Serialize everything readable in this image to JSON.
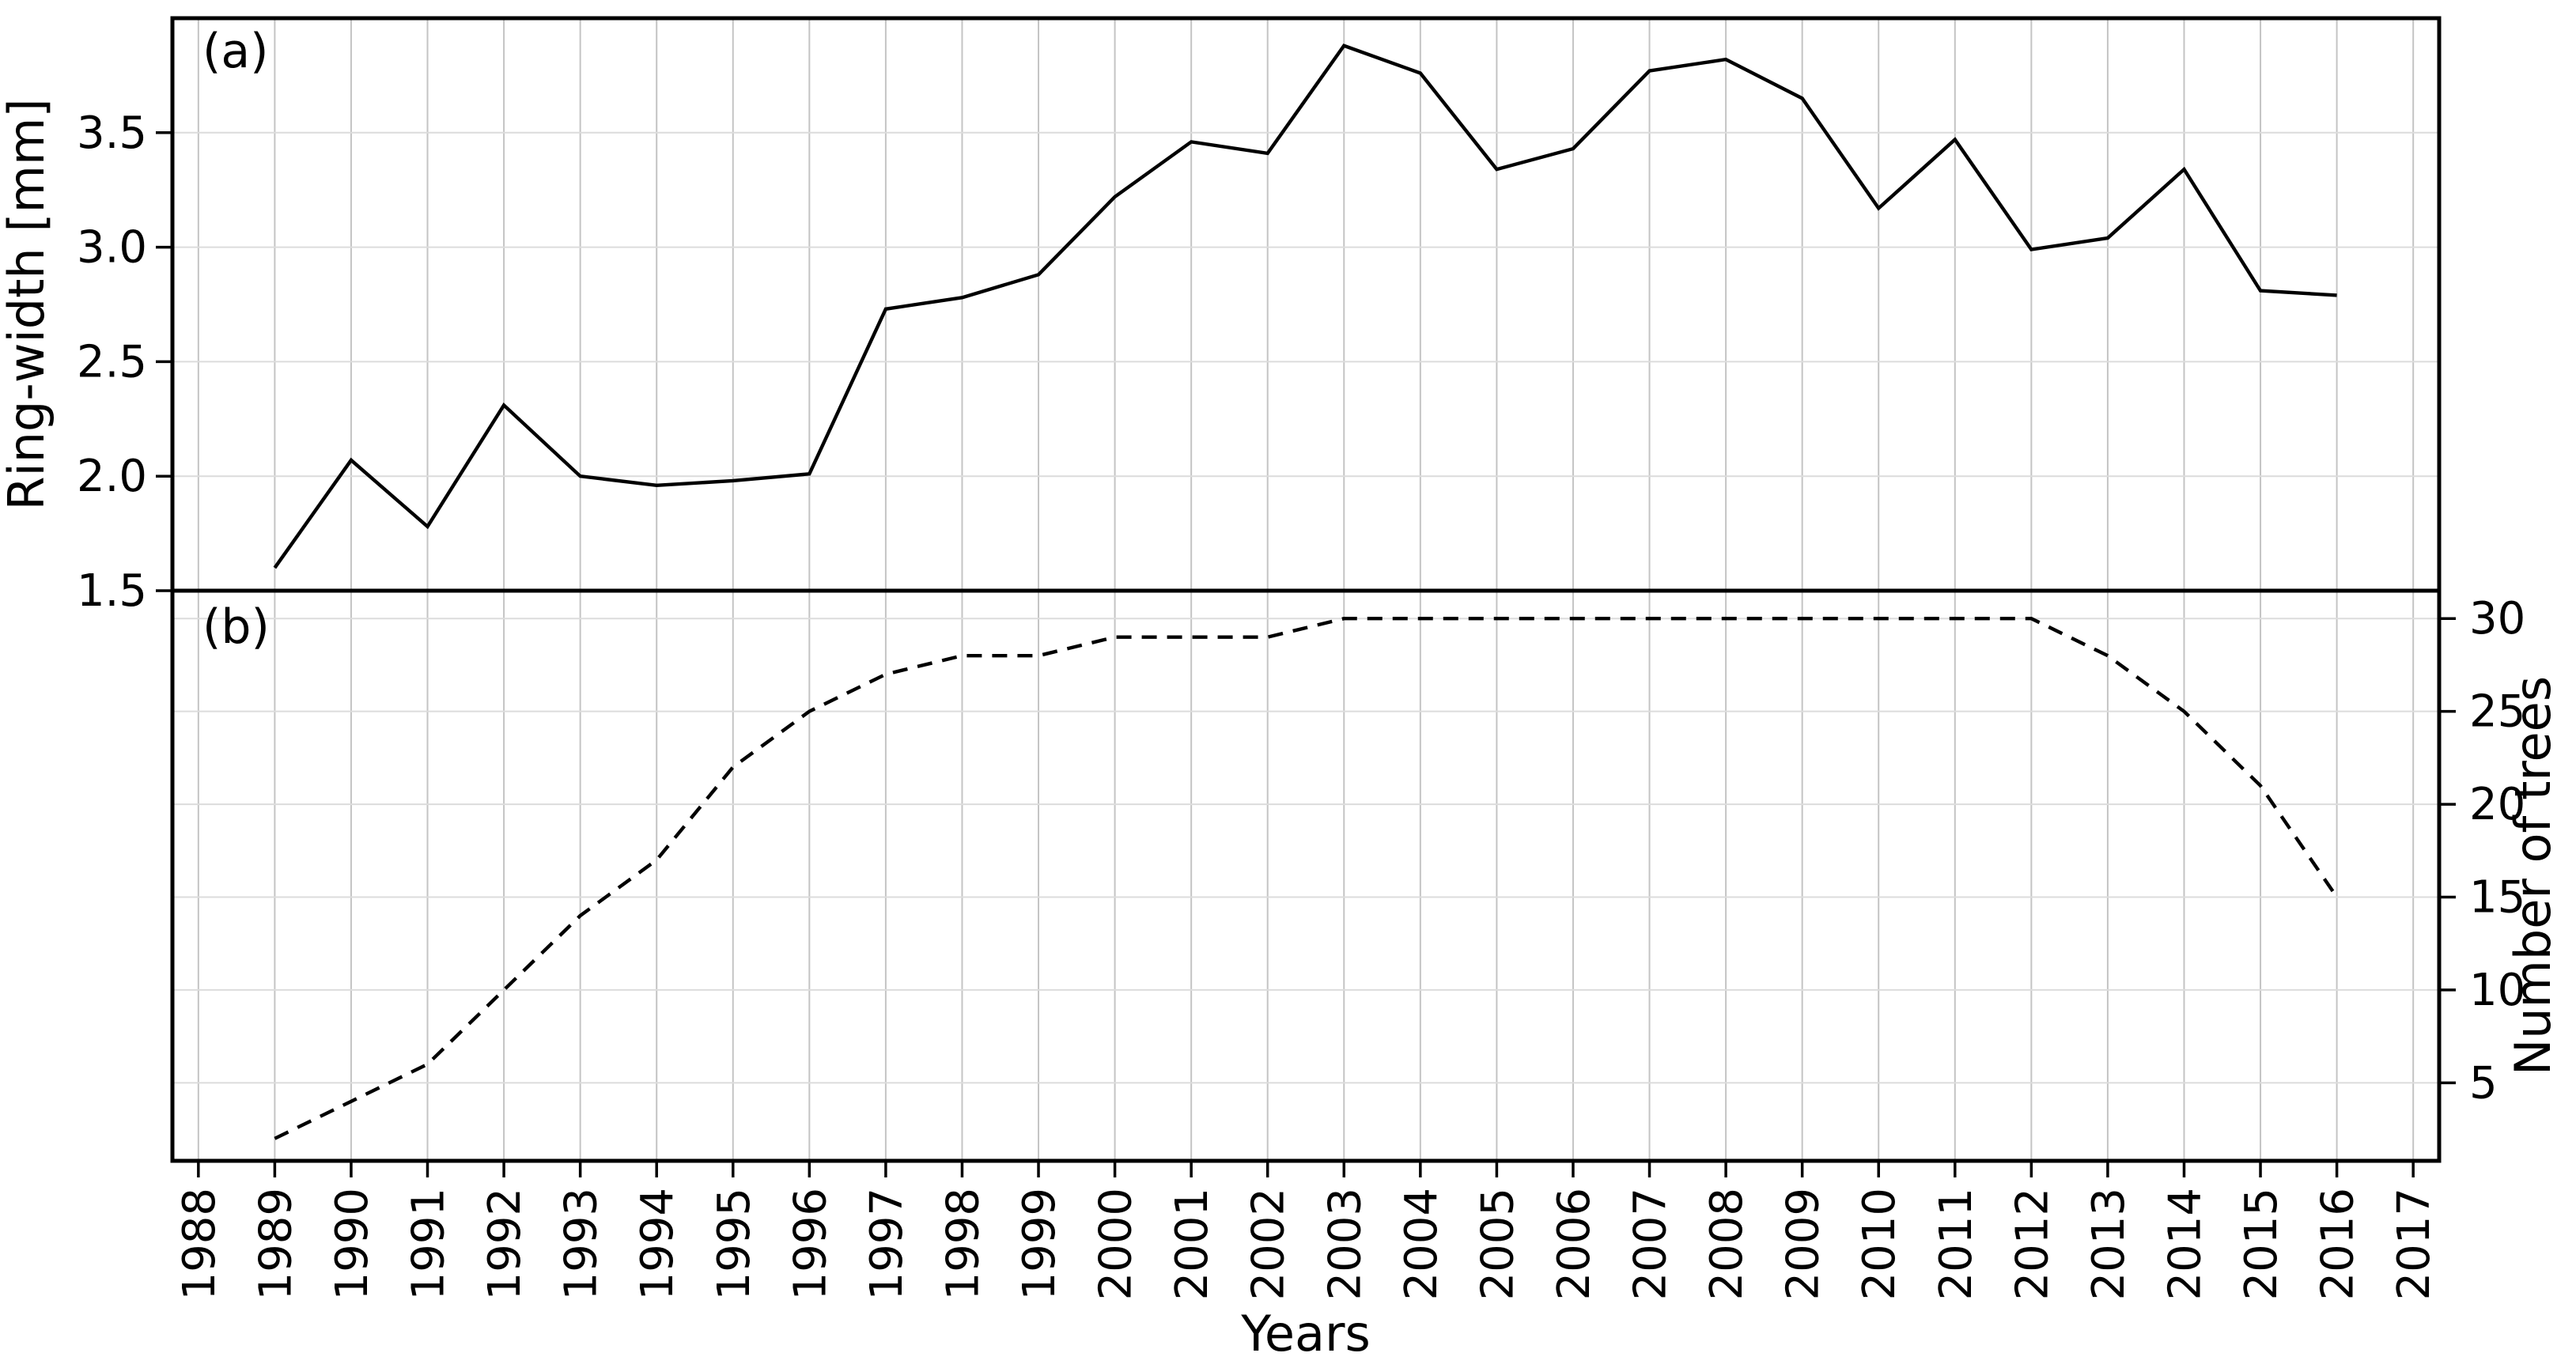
{
  "chart_data": {
    "type": "line",
    "layout_hint": "two stacked panels, shared x axis, grid on, no legend",
    "background": "#ffffff",
    "line_color": "#000000",
    "grid_color_vertical": "#c4c4c4",
    "grid_color_horizontal": "#dcdcdc",
    "x_axis": {
      "label": "Years",
      "xlim": [
        1987.66,
        2017.34
      ],
      "tick_rotation": 90,
      "ticks": [
        1988,
        1989,
        1990,
        1991,
        1992,
        1993,
        1994,
        1995,
        1996,
        1997,
        1998,
        1999,
        2000,
        2001,
        2002,
        2003,
        2004,
        2005,
        2006,
        2007,
        2008,
        2009,
        2010,
        2011,
        2012,
        2013,
        2014,
        2015,
        2016,
        2017
      ]
    },
    "panels": [
      {
        "id": "a",
        "panel_label": "(a)",
        "ylabel": "Ring-width [mm]",
        "ylabel_side": "left",
        "yticks_side": "left",
        "ylim": [
          1.5,
          4.0
        ],
        "ytick_values": [
          1.5,
          2.0,
          2.5,
          3.0,
          3.5
        ],
        "ytick_labels": [
          "1.5",
          "2.0",
          "2.5",
          "3.0",
          "3.5"
        ],
        "series": {
          "name": "ring-width",
          "line_style": "solid",
          "x": [
            1989,
            1990,
            1991,
            1992,
            1993,
            1994,
            1995,
            1996,
            1997,
            1998,
            1999,
            2000,
            2001,
            2002,
            2003,
            2004,
            2005,
            2006,
            2007,
            2008,
            2009,
            2010,
            2011,
            2012,
            2013,
            2014,
            2015,
            2016
          ],
          "y": [
            1.6,
            2.07,
            1.78,
            2.31,
            2.0,
            1.96,
            1.98,
            2.01,
            2.73,
            2.78,
            2.88,
            3.22,
            3.46,
            3.41,
            3.88,
            3.76,
            3.34,
            3.43,
            3.77,
            3.82,
            3.65,
            3.17,
            3.47,
            2.99,
            3.04,
            3.34,
            2.81,
            2.79
          ]
        }
      },
      {
        "id": "b",
        "panel_label": "(b)",
        "ylabel": "Number of trees",
        "ylabel_side": "right",
        "yticks_side": "right",
        "ylim": [
          0.8,
          31.5
        ],
        "ytick_values": [
          5,
          10,
          15,
          20,
          25,
          30
        ],
        "ytick_labels": [
          "5",
          "10",
          "15",
          "20",
          "25",
          "30"
        ],
        "series": {
          "name": "number-of-trees",
          "line_style": "dashed",
          "x": [
            1989,
            1990,
            1991,
            1992,
            1993,
            1994,
            1995,
            1996,
            1997,
            1998,
            1999,
            2000,
            2001,
            2002,
            2003,
            2004,
            2005,
            2006,
            2007,
            2008,
            2009,
            2010,
            2011,
            2012,
            2013,
            2014,
            2015,
            2016
          ],
          "y": [
            2,
            4,
            6,
            10,
            14,
            17,
            22,
            25,
            27,
            28,
            28,
            29,
            29,
            29,
            30,
            30,
            30,
            30,
            30,
            30,
            30,
            30,
            30,
            30,
            28,
            25,
            21,
            15
          ]
        }
      }
    ]
  }
}
